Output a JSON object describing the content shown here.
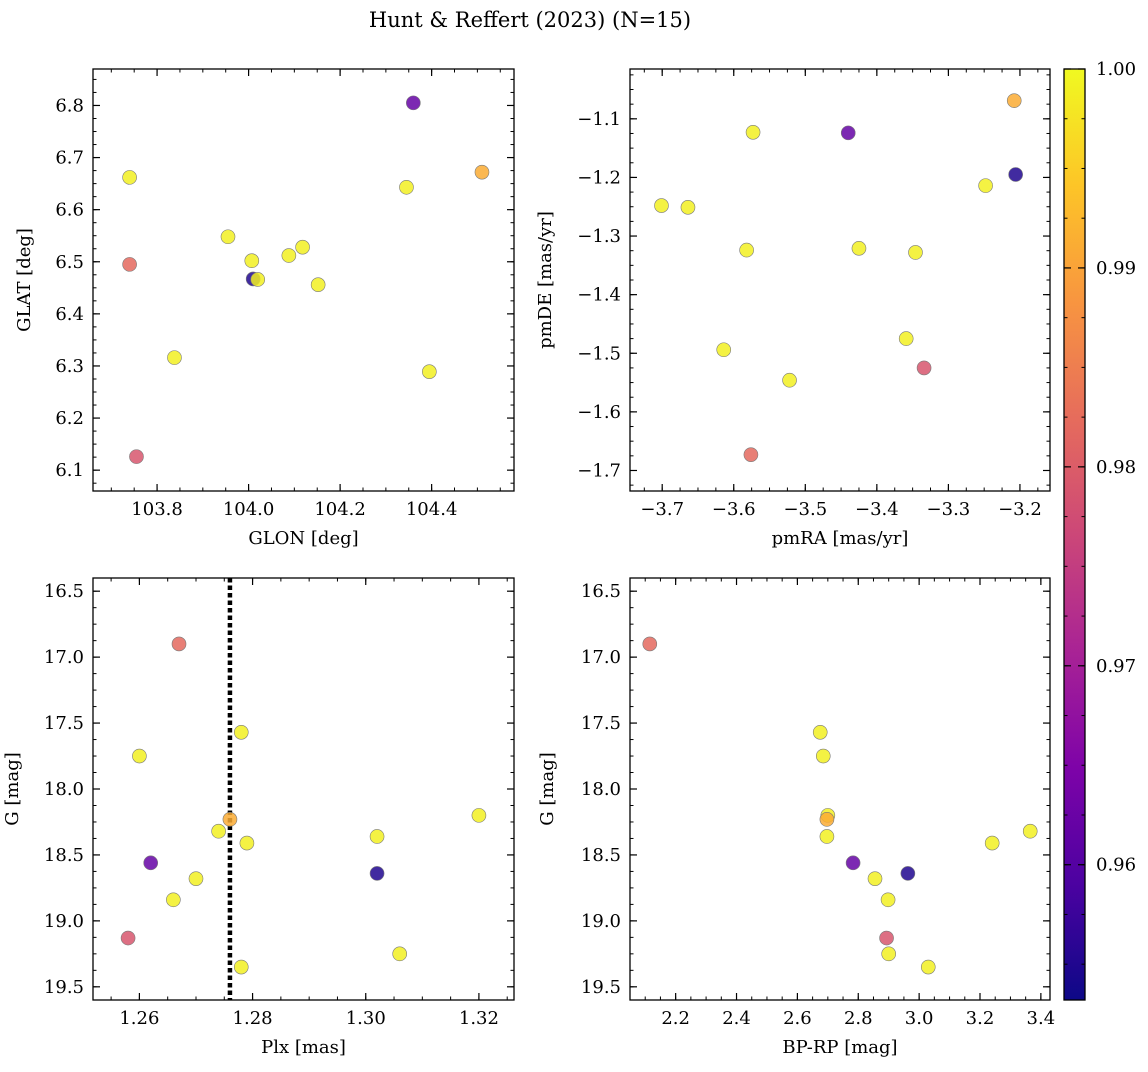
{
  "figure": {
    "title": "Hunt & Reffert (2023) (N=15)"
  },
  "colorbar": {
    "colormap": "plasma",
    "range": [
      0.9532,
      1.0
    ],
    "ticks": [
      0.96,
      0.97,
      0.98,
      0.99,
      1.0
    ],
    "tick_labels": [
      "0.96",
      "0.97",
      "0.98",
      "0.99",
      "1.00"
    ]
  },
  "chart_data": [
    {
      "type": "scatter",
      "id": "glon-glat",
      "title": "",
      "xlabel": "GLON [deg]",
      "ylabel": "GLAT [deg]",
      "xlim": [
        103.66,
        104.58
      ],
      "ylim": [
        6.06,
        6.87
      ],
      "invert_y": false,
      "xticks": [
        103.8,
        104.0,
        104.2,
        104.4
      ],
      "xtick_labels": [
        "103.8",
        "104.0",
        "104.2",
        "104.4"
      ],
      "xminor_step": 0.05,
      "yticks": [
        6.1,
        6.2,
        6.3,
        6.4,
        6.5,
        6.6,
        6.7,
        6.8
      ],
      "ytick_labels": [
        "6.1",
        "6.2",
        "6.3",
        "6.4",
        "6.5",
        "6.6",
        "6.7",
        "6.8"
      ],
      "yminor_step": 0.025,
      "points": [
        {
          "x": 104.36,
          "y": 6.805,
          "c": 0.962
        },
        {
          "x": 103.74,
          "y": 6.662,
          "c": 0.999
        },
        {
          "x": 104.345,
          "y": 6.643,
          "c": 0.999
        },
        {
          "x": 104.51,
          "y": 6.672,
          "c": 0.991
        },
        {
          "x": 103.955,
          "y": 6.548,
          "c": 0.999
        },
        {
          "x": 104.118,
          "y": 6.528,
          "c": 0.999
        },
        {
          "x": 104.088,
          "y": 6.512,
          "c": 0.999
        },
        {
          "x": 104.007,
          "y": 6.502,
          "c": 0.999
        },
        {
          "x": 103.74,
          "y": 6.495,
          "c": 0.982
        },
        {
          "x": 104.01,
          "y": 6.467,
          "c": 0.955
        },
        {
          "x": 104.02,
          "y": 6.466,
          "c": 0.999
        },
        {
          "x": 104.152,
          "y": 6.456,
          "c": 0.999
        },
        {
          "x": 103.838,
          "y": 6.316,
          "c": 0.999
        },
        {
          "x": 104.395,
          "y": 6.289,
          "c": 0.999
        },
        {
          "x": 103.755,
          "y": 6.126,
          "c": 0.979
        }
      ]
    },
    {
      "type": "scatter",
      "id": "pmra-pmde",
      "title": "",
      "xlabel": "pmRA [mas/yr]",
      "ylabel": "pmDE [mas/yr]",
      "xlim": [
        -3.745,
        -3.158
      ],
      "ylim": [
        -1.735,
        -1.015
      ],
      "invert_y": false,
      "xticks": [
        -3.7,
        -3.6,
        -3.5,
        -3.4,
        -3.3,
        -3.2
      ],
      "xtick_labels": [
        "−3.7",
        "−3.6",
        "−3.5",
        "−3.4",
        "−3.3",
        "−3.2"
      ],
      "xminor_step": 0.025,
      "yticks": [
        -1.7,
        -1.6,
        -1.5,
        -1.4,
        -1.3,
        -1.2,
        -1.1
      ],
      "ytick_labels": [
        "−1.7",
        "−1.6",
        "−1.5",
        "−1.4",
        "−1.3",
        "−1.2",
        "−1.1"
      ],
      "yminor_step": 0.025,
      "points": [
        {
          "x": -3.208,
          "y": -1.069,
          "c": 0.991
        },
        {
          "x": -3.573,
          "y": -1.123,
          "c": 0.999
        },
        {
          "x": -3.44,
          "y": -1.124,
          "c": 0.962
        },
        {
          "x": -3.206,
          "y": -1.195,
          "c": 0.955
        },
        {
          "x": -3.248,
          "y": -1.214,
          "c": 0.999
        },
        {
          "x": -3.701,
          "y": -1.248,
          "c": 0.999
        },
        {
          "x": -3.664,
          "y": -1.251,
          "c": 0.999
        },
        {
          "x": -3.582,
          "y": -1.324,
          "c": 0.999
        },
        {
          "x": -3.425,
          "y": -1.321,
          "c": 0.999
        },
        {
          "x": -3.346,
          "y": -1.328,
          "c": 0.999
        },
        {
          "x": -3.614,
          "y": -1.494,
          "c": 0.999
        },
        {
          "x": -3.359,
          "y": -1.475,
          "c": 0.999
        },
        {
          "x": -3.522,
          "y": -1.546,
          "c": 0.999
        },
        {
          "x": -3.334,
          "y": -1.525,
          "c": 0.979
        },
        {
          "x": -3.576,
          "y": -1.673,
          "c": 0.982
        }
      ]
    },
    {
      "type": "scatter",
      "id": "plx-g",
      "title": "",
      "xlabel": "Plx [mas]",
      "ylabel": "G [mag]",
      "xlim": [
        1.2518,
        1.3262
      ],
      "ylim": [
        19.6,
        16.4
      ],
      "invert_y": true,
      "vline": {
        "x": 1.276,
        "style": "dotted",
        "color": "#000000"
      },
      "xticks": [
        1.26,
        1.28,
        1.3,
        1.32
      ],
      "xtick_labels": [
        "1.26",
        "1.28",
        "1.30",
        "1.32"
      ],
      "xminor_step": 0.005,
      "yticks": [
        16.5,
        17.0,
        17.5,
        18.0,
        18.5,
        19.0,
        19.5
      ],
      "ytick_labels": [
        "16.5",
        "17.0",
        "17.5",
        "18.0",
        "18.5",
        "19.0",
        "19.5"
      ],
      "yminor_step": 0.125,
      "points": [
        {
          "x": 1.267,
          "y": 16.9,
          "c": 0.982
        },
        {
          "x": 1.278,
          "y": 17.57,
          "c": 0.999
        },
        {
          "x": 1.26,
          "y": 17.75,
          "c": 0.999
        },
        {
          "x": 1.32,
          "y": 18.2,
          "c": 0.999
        },
        {
          "x": 1.276,
          "y": 18.23,
          "c": 0.991
        },
        {
          "x": 1.274,
          "y": 18.32,
          "c": 0.999
        },
        {
          "x": 1.302,
          "y": 18.36,
          "c": 0.999
        },
        {
          "x": 1.279,
          "y": 18.41,
          "c": 0.999
        },
        {
          "x": 1.262,
          "y": 18.56,
          "c": 0.962
        },
        {
          "x": 1.302,
          "y": 18.64,
          "c": 0.955
        },
        {
          "x": 1.27,
          "y": 18.68,
          "c": 0.999
        },
        {
          "x": 1.266,
          "y": 18.84,
          "c": 0.999
        },
        {
          "x": 1.258,
          "y": 19.13,
          "c": 0.979
        },
        {
          "x": 1.306,
          "y": 19.25,
          "c": 0.999
        },
        {
          "x": 1.278,
          "y": 19.35,
          "c": 0.999
        }
      ]
    },
    {
      "type": "scatter",
      "id": "bprp-g",
      "title": "",
      "xlabel": "BP-RP [mag]",
      "ylabel": "G [mag]",
      "xlim": [
        2.05,
        3.43
      ],
      "ylim": [
        19.6,
        16.4
      ],
      "invert_y": true,
      "xticks": [
        2.2,
        2.4,
        2.6,
        2.8,
        3.0,
        3.2,
        3.4
      ],
      "xtick_labels": [
        "2.2",
        "2.4",
        "2.6",
        "2.8",
        "3.0",
        "3.2",
        "3.4"
      ],
      "xminor_step": 0.05,
      "yticks": [
        16.5,
        17.0,
        17.5,
        18.0,
        18.5,
        19.0,
        19.5
      ],
      "ytick_labels": [
        "16.5",
        "17.0",
        "17.5",
        "18.0",
        "18.5",
        "19.0",
        "19.5"
      ],
      "yminor_step": 0.125,
      "points": [
        {
          "x": 2.115,
          "y": 16.9,
          "c": 0.982
        },
        {
          "x": 2.675,
          "y": 17.57,
          "c": 0.999
        },
        {
          "x": 2.685,
          "y": 17.75,
          "c": 0.999
        },
        {
          "x": 2.7,
          "y": 18.2,
          "c": 0.999
        },
        {
          "x": 2.697,
          "y": 18.23,
          "c": 0.991
        },
        {
          "x": 3.365,
          "y": 18.32,
          "c": 0.999
        },
        {
          "x": 2.697,
          "y": 18.36,
          "c": 0.999
        },
        {
          "x": 3.24,
          "y": 18.41,
          "c": 0.999
        },
        {
          "x": 2.783,
          "y": 18.56,
          "c": 0.962
        },
        {
          "x": 2.963,
          "y": 18.64,
          "c": 0.955
        },
        {
          "x": 2.855,
          "y": 18.68,
          "c": 0.999
        },
        {
          "x": 2.898,
          "y": 18.84,
          "c": 0.999
        },
        {
          "x": 2.893,
          "y": 19.13,
          "c": 0.979
        },
        {
          "x": 2.9,
          "y": 19.25,
          "c": 0.999
        },
        {
          "x": 3.03,
          "y": 19.35,
          "c": 0.999
        }
      ]
    }
  ]
}
